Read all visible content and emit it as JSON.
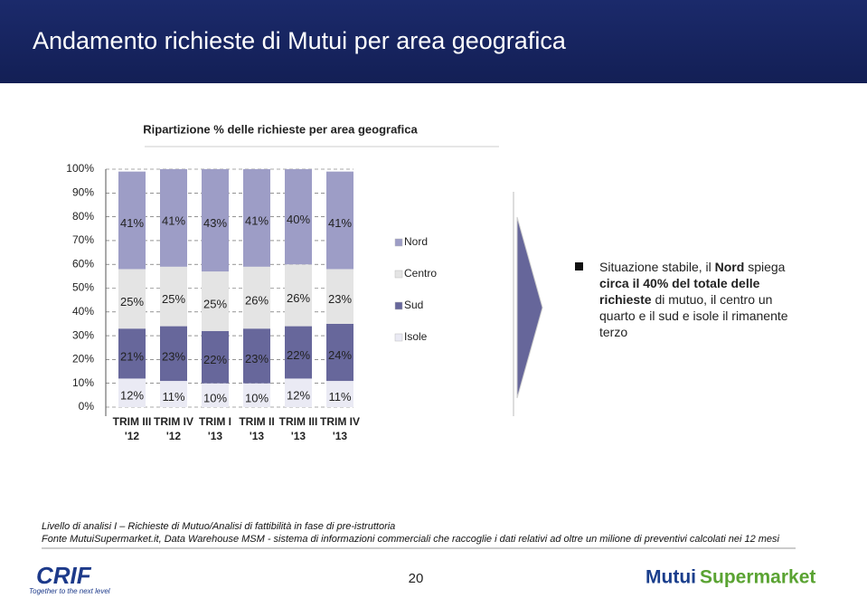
{
  "header": {
    "title": "Andamento richieste di Mutui per area geografica"
  },
  "chart_data": {
    "type": "stacked_bar",
    "title": "Ripartizione % delle richieste per area geografica",
    "categories": [
      "TRIM III '12",
      "TRIM IV '12",
      "TRIM I '13",
      "TRIM II '13",
      "TRIM III '13",
      "TRIM IV '13"
    ],
    "series": [
      {
        "name": "Nord",
        "color": "#9d9dc6",
        "values": [
          41,
          41,
          43,
          41,
          40,
          41
        ],
        "value_labels": [
          "41%",
          "41%",
          "43%",
          "41%",
          "40%",
          "41%"
        ]
      },
      {
        "name": "Centro",
        "color": "#e4e4e4",
        "values": [
          25,
          25,
          25,
          26,
          26,
          23
        ],
        "value_labels": [
          "25%",
          "25%",
          "25%",
          "26%",
          "26%",
          "23%"
        ]
      },
      {
        "name": "Sud",
        "color": "#67679b",
        "values": [
          21,
          23,
          22,
          23,
          22,
          24
        ],
        "value_labels": [
          "21%",
          "23%",
          "22%",
          "23%",
          "22%",
          "24%"
        ]
      },
      {
        "name": "Isole",
        "color": "#eaeaf4",
        "values": [
          12,
          11,
          10,
          10,
          12,
          11
        ],
        "value_labels": [
          "12%",
          "11%",
          "10%",
          "10%",
          "12%",
          "11%"
        ]
      }
    ],
    "ylim": [
      0,
      100
    ],
    "yticks": [
      {
        "value": 0,
        "label": "0%"
      },
      {
        "value": 10,
        "label": "10%"
      },
      {
        "value": 20,
        "label": "20%"
      },
      {
        "value": 30,
        "label": "30%"
      },
      {
        "value": 40,
        "label": "40%"
      },
      {
        "value": 50,
        "label": "50%"
      },
      {
        "value": 60,
        "label": "60%"
      },
      {
        "value": 70,
        "label": "70%"
      },
      {
        "value": 80,
        "label": "80%"
      },
      {
        "value": 90,
        "label": "90%"
      },
      {
        "value": 100,
        "label": "100%"
      }
    ],
    "grid": true
  },
  "note": {
    "segments": [
      {
        "text": "Situazione stabile, il ",
        "bold": false
      },
      {
        "text": "Nord",
        "bold": true
      },
      {
        "text": " spiega ",
        "bold": false
      },
      {
        "text": "circa il 40% del totale delle richieste",
        "bold": true
      },
      {
        "text": " di mutuo, il centro un quarto e il sud e isole il rimanente terzo",
        "bold": false
      }
    ]
  },
  "footer": {
    "line1": "Livello di analisi I – Richieste di Mutuo/Analisi di fattibilità in fase di pre-istruttoria",
    "line2": "Fonte MutuiSupermarket.it, Data Warehouse MSM - sistema di informazioni commerciali che raccoglie i dati relativi ad oltre un milione di preventivi calcolati nei 12 mesi",
    "page": "20",
    "logo_left": "CRIF",
    "logo_left_tagline": "Together to the next level",
    "logo_right_1": "Mutui",
    "logo_right_2": "Supermarket"
  }
}
